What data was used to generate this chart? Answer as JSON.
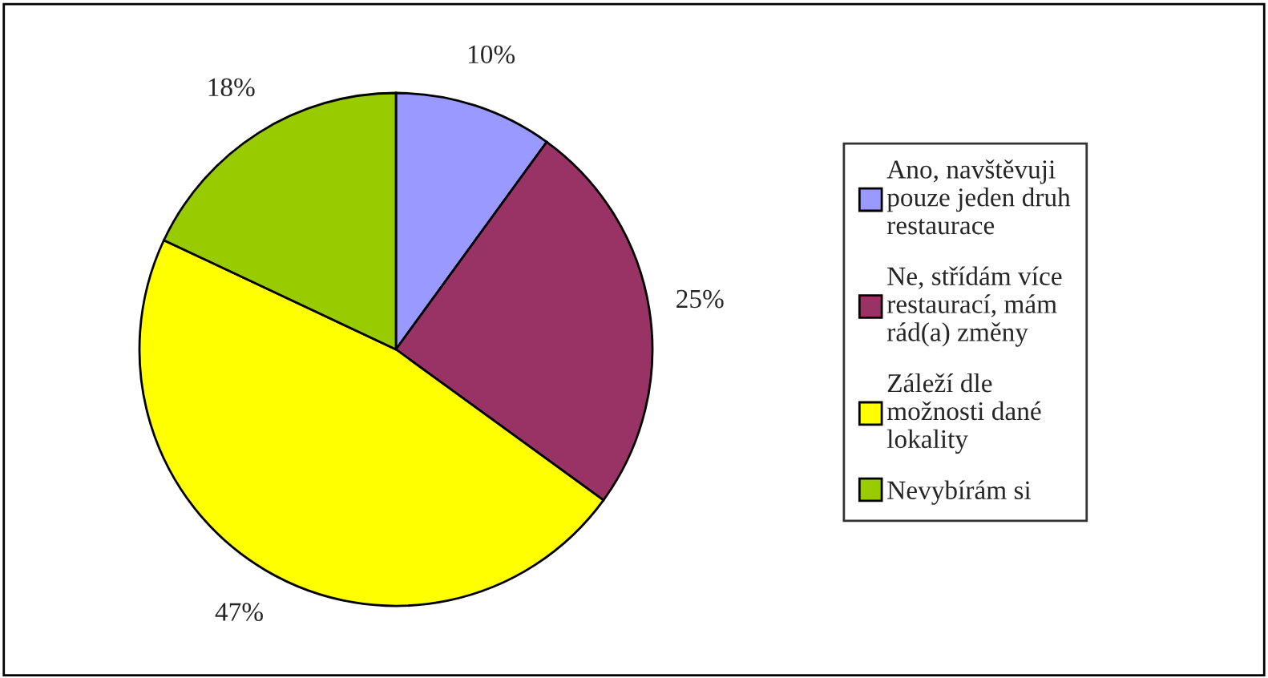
{
  "chart_data": {
    "type": "pie",
    "categories": [
      "Ano, navštěvuji pouze jeden druh restaurace",
      "Ne, střídám více restaurací, mám rád(a) změny",
      "Záleží dle možnosti dané lokality",
      "Nevybírám si"
    ],
    "values": [
      10,
      25,
      47,
      18
    ],
    "colors": [
      "#9999ff",
      "#993366",
      "#ffff00",
      "#99cc00"
    ],
    "value_labels": [
      "10%",
      "25%",
      "47%",
      "18%"
    ],
    "legend": "right"
  }
}
